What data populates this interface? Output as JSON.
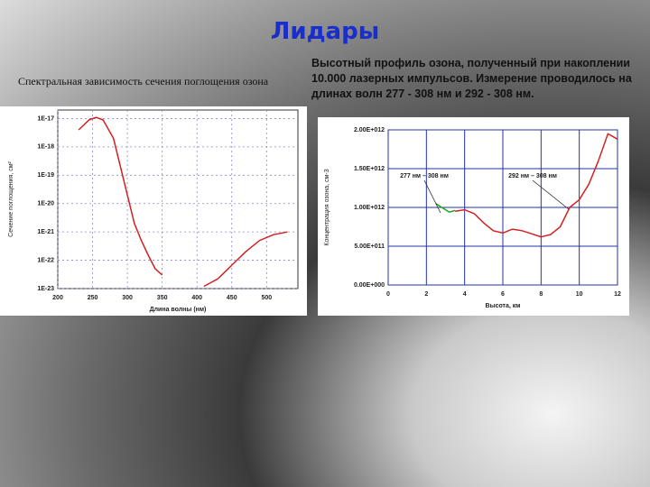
{
  "slide_title": "Лидары",
  "chart_data": [
    {
      "type": "line",
      "title": "Спектральная зависимость сечения поглощения озона",
      "xlabel": "Длина волны (нм)",
      "ylabel": "Сечение поглощения, см²",
      "log_y": true,
      "grid": true,
      "x": [
        230,
        245,
        255,
        265,
        280,
        290,
        300,
        310,
        320,
        330,
        340,
        350,
        380,
        410,
        430,
        450,
        470,
        490,
        510,
        530
      ],
      "series": [
        {
          "color": "#d42020",
          "values": [
            4e-18,
            9e-18,
            1.1e-17,
            9e-18,
            2e-18,
            2e-19,
            2e-20,
            2e-21,
            5e-22,
            1.5e-22,
            5e-23,
            3e-23,
            null,
            1.2e-23,
            2.2e-23,
            6.7e-23,
            2e-22,
            5e-22,
            8e-22,
            1e-21
          ]
        }
      ],
      "xlim": [
        200,
        545
      ],
      "xticks": [
        200,
        250,
        300,
        350,
        400,
        450,
        500
      ],
      "ylim": [
        1e-23,
        2e-17
      ],
      "yticks": [
        {
          "value": 1e-17,
          "label": "1E-17"
        },
        {
          "value": 1e-18,
          "label": "1E-18"
        },
        {
          "value": 1e-19,
          "label": "1E-19"
        },
        {
          "value": 1e-20,
          "label": "1E-20"
        },
        {
          "value": 1e-21,
          "label": "1E-21"
        },
        {
          "value": 1e-22,
          "label": "1E-22"
        },
        {
          "value": 1e-23,
          "label": "1E-23"
        }
      ]
    },
    {
      "type": "line",
      "title": "Высотный профиль озона, полученный при накоплении 10.000 лазерных импульсов. Измерение проводилось на длинах волн 277 - 308 нм и 292 - 308 нм.",
      "xlabel": "Высота, км",
      "ylabel": "Концентрация озона, см-3",
      "log_y": false,
      "grid": true,
      "grid_color": "#2233aa",
      "annotations": [
        "277 нм – 308 нм",
        "292 нм – 308 нм"
      ],
      "series": [
        {
          "color": "#22aa22",
          "x": [
            2.5,
            2.8,
            3.2,
            3.5
          ],
          "values": [
            1050000000000.0,
            1000000000000.0,
            940000000000.0,
            960000000000.0
          ]
        },
        {
          "color": "#d42020",
          "x": [
            3.5,
            4,
            4.5,
            5,
            5.5,
            6,
            6.5,
            7,
            7.5,
            8,
            8.5,
            9,
            9.5,
            10,
            10.5,
            11,
            11.5,
            12
          ],
          "values": [
            950000000000.0,
            970000000000.0,
            920000000000.0,
            800000000000.0,
            700000000000.0,
            670000000000.0,
            720000000000.0,
            700000000000.0,
            660000000000.0,
            620000000000.0,
            650000000000.0,
            750000000000.0,
            1000000000000.0,
            1100000000000.0,
            1300000000000.0,
            1600000000000.0,
            1950000000000.0,
            1880000000000.0
          ]
        }
      ],
      "xlim": [
        0,
        12
      ],
      "xticks": [
        0,
        2,
        4,
        6,
        8,
        10,
        12
      ],
      "ylim": [
        0,
        2000000000000.0
      ],
      "yticks": [
        {
          "value": 0,
          "label": "0.00E+000"
        },
        {
          "value": 500000000000.0,
          "label": "5.00E+011"
        },
        {
          "value": 1000000000000.0,
          "label": "1.00E+012"
        },
        {
          "value": 1500000000000.0,
          "label": "1.50E+012"
        },
        {
          "value": 2000000000000.0,
          "label": "2.00E+012"
        }
      ]
    }
  ]
}
